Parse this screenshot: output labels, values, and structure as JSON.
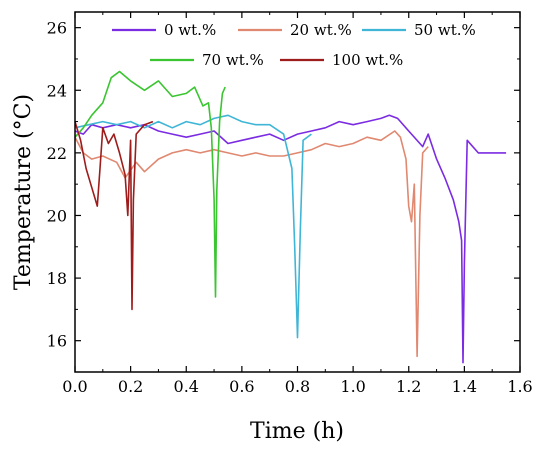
{
  "chart_data": {
    "type": "line",
    "xlabel": "Time (h)",
    "ylabel": "Temperature (°C)",
    "xlim": [
      0.0,
      1.6
    ],
    "ylim": [
      15.0,
      26.5
    ],
    "xticks": [
      "0.0",
      "0.2",
      "0.4",
      "0.6",
      "0.8",
      "1.0",
      "1.2",
      "1.4",
      "1.6"
    ],
    "yticks": [
      "16",
      "18",
      "20",
      "22",
      "24",
      "26"
    ],
    "legend_position": "top",
    "grid": false,
    "series": [
      {
        "name": "0 wt.%",
        "color": "#7b2be2",
        "points": [
          [
            0.0,
            22.7
          ],
          [
            0.03,
            22.6
          ],
          [
            0.06,
            22.9
          ],
          [
            0.1,
            22.8
          ],
          [
            0.15,
            22.9
          ],
          [
            0.2,
            22.8
          ],
          [
            0.25,
            22.9
          ],
          [
            0.3,
            22.7
          ],
          [
            0.35,
            22.6
          ],
          [
            0.4,
            22.5
          ],
          [
            0.45,
            22.6
          ],
          [
            0.5,
            22.7
          ],
          [
            0.55,
            22.3
          ],
          [
            0.6,
            22.4
          ],
          [
            0.65,
            22.5
          ],
          [
            0.7,
            22.6
          ],
          [
            0.75,
            22.4
          ],
          [
            0.8,
            22.6
          ],
          [
            0.85,
            22.7
          ],
          [
            0.9,
            22.8
          ],
          [
            0.95,
            23.0
          ],
          [
            1.0,
            22.9
          ],
          [
            1.05,
            23.0
          ],
          [
            1.1,
            23.1
          ],
          [
            1.13,
            23.2
          ],
          [
            1.16,
            23.1
          ],
          [
            1.2,
            22.7
          ],
          [
            1.25,
            22.2
          ],
          [
            1.27,
            22.6
          ],
          [
            1.3,
            21.8
          ],
          [
            1.33,
            21.2
          ],
          [
            1.36,
            20.5
          ],
          [
            1.38,
            19.8
          ],
          [
            1.39,
            19.2
          ],
          [
            1.395,
            15.3
          ],
          [
            1.4,
            18.5
          ],
          [
            1.41,
            22.4
          ],
          [
            1.45,
            22.0
          ],
          [
            1.5,
            22.0
          ],
          [
            1.55,
            22.0
          ]
        ]
      },
      {
        "name": "20 wt.%",
        "color": "#e08870",
        "points": [
          [
            0.0,
            22.5
          ],
          [
            0.03,
            22.0
          ],
          [
            0.06,
            21.8
          ],
          [
            0.1,
            21.9
          ],
          [
            0.15,
            21.7
          ],
          [
            0.18,
            21.2
          ],
          [
            0.22,
            21.7
          ],
          [
            0.25,
            21.4
          ],
          [
            0.3,
            21.8
          ],
          [
            0.35,
            22.0
          ],
          [
            0.4,
            22.1
          ],
          [
            0.45,
            22.0
          ],
          [
            0.5,
            22.1
          ],
          [
            0.55,
            22.0
          ],
          [
            0.6,
            21.9
          ],
          [
            0.65,
            22.0
          ],
          [
            0.7,
            21.9
          ],
          [
            0.75,
            21.9
          ],
          [
            0.8,
            22.0
          ],
          [
            0.85,
            22.1
          ],
          [
            0.9,
            22.3
          ],
          [
            0.95,
            22.2
          ],
          [
            1.0,
            22.3
          ],
          [
            1.05,
            22.5
          ],
          [
            1.1,
            22.4
          ],
          [
            1.15,
            22.7
          ],
          [
            1.17,
            22.5
          ],
          [
            1.19,
            21.8
          ],
          [
            1.2,
            20.3
          ],
          [
            1.21,
            19.8
          ],
          [
            1.22,
            21.0
          ],
          [
            1.23,
            15.5
          ],
          [
            1.24,
            20.0
          ],
          [
            1.25,
            22.0
          ],
          [
            1.27,
            22.2
          ]
        ]
      },
      {
        "name": "50 wt.%",
        "color": "#3fb6d6",
        "points": [
          [
            0.0,
            22.8
          ],
          [
            0.05,
            22.9
          ],
          [
            0.1,
            23.0
          ],
          [
            0.15,
            22.9
          ],
          [
            0.2,
            23.0
          ],
          [
            0.25,
            22.8
          ],
          [
            0.3,
            23.0
          ],
          [
            0.35,
            22.8
          ],
          [
            0.4,
            23.0
          ],
          [
            0.45,
            22.9
          ],
          [
            0.5,
            23.1
          ],
          [
            0.55,
            23.2
          ],
          [
            0.6,
            23.0
          ],
          [
            0.65,
            22.9
          ],
          [
            0.7,
            22.9
          ],
          [
            0.75,
            22.6
          ],
          [
            0.78,
            21.5
          ],
          [
            0.79,
            19.0
          ],
          [
            0.8,
            16.1
          ],
          [
            0.81,
            19.5
          ],
          [
            0.82,
            22.4
          ],
          [
            0.85,
            22.6
          ]
        ]
      },
      {
        "name": "70 wt.%",
        "color": "#3ac531",
        "points": [
          [
            0.0,
            22.5
          ],
          [
            0.03,
            22.8
          ],
          [
            0.06,
            23.2
          ],
          [
            0.1,
            23.6
          ],
          [
            0.13,
            24.4
          ],
          [
            0.16,
            24.6
          ],
          [
            0.2,
            24.3
          ],
          [
            0.25,
            24.0
          ],
          [
            0.3,
            24.3
          ],
          [
            0.35,
            23.8
          ],
          [
            0.4,
            23.9
          ],
          [
            0.43,
            24.1
          ],
          [
            0.46,
            23.5
          ],
          [
            0.48,
            23.6
          ],
          [
            0.49,
            22.8
          ],
          [
            0.5,
            20.5
          ],
          [
            0.505,
            17.4
          ],
          [
            0.51,
            20.8
          ],
          [
            0.52,
            23.0
          ],
          [
            0.53,
            23.9
          ],
          [
            0.54,
            24.1
          ]
        ]
      },
      {
        "name": "100 wt.%",
        "color": "#9e1c1c",
        "points": [
          [
            0.0,
            23.0
          ],
          [
            0.02,
            22.4
          ],
          [
            0.04,
            21.5
          ],
          [
            0.06,
            20.9
          ],
          [
            0.08,
            20.3
          ],
          [
            0.09,
            21.5
          ],
          [
            0.1,
            22.8
          ],
          [
            0.12,
            22.3
          ],
          [
            0.14,
            22.6
          ],
          [
            0.16,
            22.0
          ],
          [
            0.18,
            21.3
          ],
          [
            0.19,
            20.0
          ],
          [
            0.2,
            22.4
          ],
          [
            0.205,
            17.0
          ],
          [
            0.21,
            20.5
          ],
          [
            0.22,
            22.6
          ],
          [
            0.25,
            22.9
          ],
          [
            0.28,
            23.0
          ]
        ]
      }
    ]
  }
}
